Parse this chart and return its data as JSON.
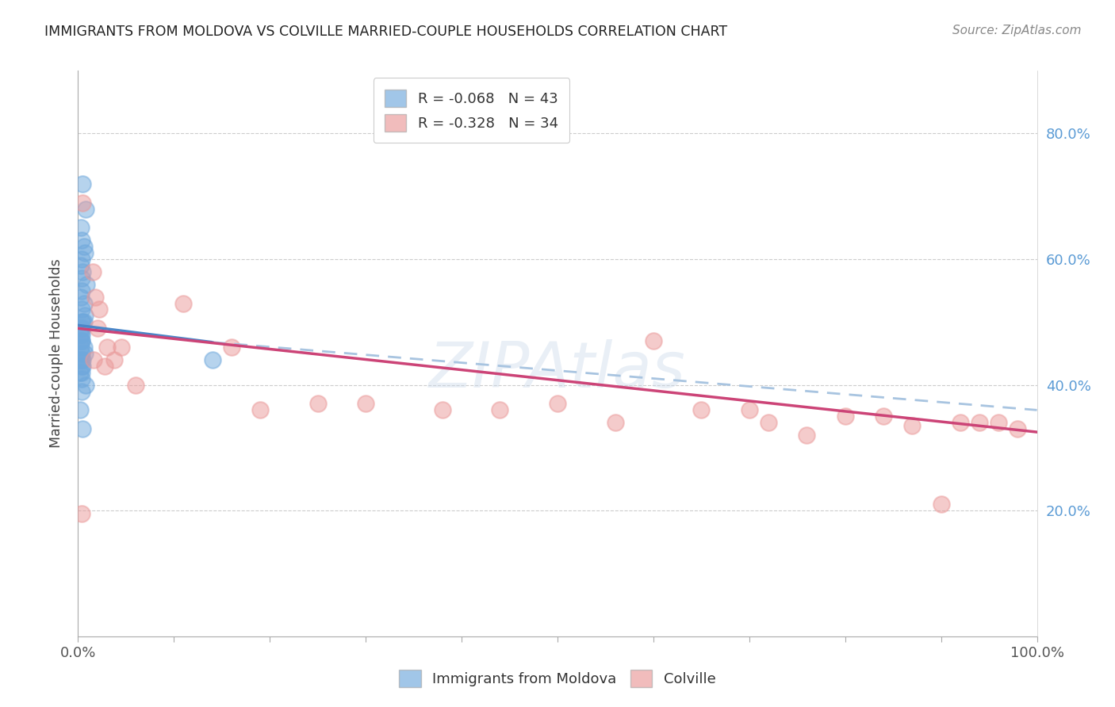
{
  "title": "IMMIGRANTS FROM MOLDOVA VS COLVILLE MARRIED-COUPLE HOUSEHOLDS CORRELATION CHART",
  "source": "Source: ZipAtlas.com",
  "ylabel": "Married-couple Households",
  "legend_blue_r": "R = -0.068",
  "legend_blue_n": "N = 43",
  "legend_pink_r": "R = -0.328",
  "legend_pink_n": "N = 34",
  "legend_blue_label": "Immigrants from Moldova",
  "legend_pink_label": "Colville",
  "blue_scatter_x": [
    0.005,
    0.008,
    0.003,
    0.004,
    0.006,
    0.007,
    0.004,
    0.003,
    0.005,
    0.004,
    0.009,
    0.004,
    0.003,
    0.006,
    0.004,
    0.007,
    0.006,
    0.004,
    0.003,
    0.005,
    0.004,
    0.003,
    0.004,
    0.006,
    0.003,
    0.007,
    0.004,
    0.005,
    0.002,
    0.004,
    0.005,
    0.004,
    0.002,
    0.004,
    0.14,
    0.008,
    0.004,
    0.002,
    0.005,
    0.004,
    0.003,
    0.005,
    0.004
  ],
  "blue_scatter_y": [
    0.72,
    0.68,
    0.65,
    0.63,
    0.62,
    0.61,
    0.6,
    0.59,
    0.58,
    0.57,
    0.56,
    0.55,
    0.54,
    0.53,
    0.52,
    0.51,
    0.5,
    0.5,
    0.49,
    0.49,
    0.48,
    0.47,
    0.47,
    0.46,
    0.46,
    0.45,
    0.45,
    0.44,
    0.44,
    0.43,
    0.43,
    0.42,
    0.42,
    0.41,
    0.44,
    0.4,
    0.39,
    0.36,
    0.33,
    0.47,
    0.48,
    0.5,
    0.44
  ],
  "pink_scatter_x": [
    0.005,
    0.004,
    0.015,
    0.018,
    0.022,
    0.02,
    0.03,
    0.045,
    0.038,
    0.016,
    0.028,
    0.06,
    0.11,
    0.16,
    0.19,
    0.25,
    0.3,
    0.38,
    0.44,
    0.5,
    0.56,
    0.6,
    0.65,
    0.7,
    0.72,
    0.76,
    0.8,
    0.84,
    0.87,
    0.9,
    0.92,
    0.94,
    0.96,
    0.98
  ],
  "pink_scatter_y": [
    0.69,
    0.195,
    0.58,
    0.54,
    0.52,
    0.49,
    0.46,
    0.46,
    0.44,
    0.44,
    0.43,
    0.4,
    0.53,
    0.46,
    0.36,
    0.37,
    0.37,
    0.36,
    0.36,
    0.37,
    0.34,
    0.47,
    0.36,
    0.36,
    0.34,
    0.32,
    0.35,
    0.35,
    0.335,
    0.21,
    0.34,
    0.34,
    0.34,
    0.33
  ],
  "blue_line_x0": 0.0,
  "blue_line_x1": 0.14,
  "blue_line_x2": 1.0,
  "blue_line_y0": 0.495,
  "blue_line_y1": 0.468,
  "blue_line_y2": 0.36,
  "pink_line_x0": 0.0,
  "pink_line_x1": 1.0,
  "pink_line_y0": 0.49,
  "pink_line_y1": 0.325,
  "blue_color": "#6fa8dc",
  "pink_color": "#ea9999",
  "blue_line_color": "#4a86c8",
  "pink_line_color": "#cc4477",
  "blue_dash_color": "#a8c4e0",
  "background_color": "#ffffff",
  "grid_color": "#cccccc",
  "xlim": [
    0.0,
    1.0
  ],
  "ylim": [
    0.0,
    0.9
  ]
}
